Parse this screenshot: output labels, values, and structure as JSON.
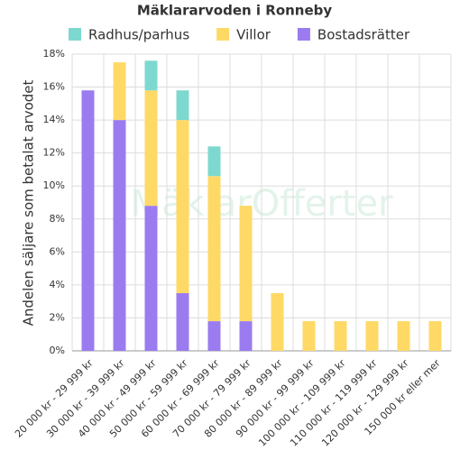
{
  "chart_data": {
    "type": "stacked_bar",
    "title": "Mäklararvoden i Ronneby",
    "watermark": "MäklarOfferter",
    "y_label": "Andelen säljare som betalat arvodet",
    "categories": [
      "20 000 kr - 29 999 kr",
      "30 000 kr - 39 999 kr",
      "40 000 kr - 49 999 kr",
      "50 000 kr - 59 999 kr",
      "60 000 kr - 69 999 kr",
      "70 000 kr - 79 999 kr",
      "80 000 kr - 89 999 kr",
      "90 000 kr - 99 999 kr",
      "100 000 kr - 109 999 kr",
      "110 000 kr - 119 999 kr",
      "120 000 kr - 129 999 kr",
      "150 000 kr eller mer"
    ],
    "series": [
      {
        "name": "Radhus/parhus",
        "color": "#7dd9cf",
        "values": [
          0,
          0,
          1.8,
          1.8,
          1.8,
          0,
          0,
          0,
          0,
          0,
          0,
          0
        ]
      },
      {
        "name": "Villor",
        "color": "#ffd966",
        "values": [
          0,
          3.5,
          7.0,
          10.5,
          8.8,
          7.0,
          3.5,
          1.8,
          1.8,
          1.8,
          1.8,
          1.8
        ]
      },
      {
        "name": "Bostadsrätter",
        "color": "#9b7bf0",
        "values": [
          15.8,
          14.0,
          8.8,
          3.5,
          1.8,
          1.8,
          0,
          0,
          0,
          0,
          0,
          0
        ]
      }
    ],
    "ylim": [
      0,
      18
    ],
    "yticks": [
      {
        "value": 0,
        "label": "0%"
      },
      {
        "value": 2,
        "label": "2%"
      },
      {
        "value": 4,
        "label": "4%"
      },
      {
        "value": 6,
        "label": "6%"
      },
      {
        "value": 8,
        "label": "8%"
      },
      {
        "value": 10,
        "label": "10%"
      },
      {
        "value": 12,
        "label": "12%"
      },
      {
        "value": 14,
        "label": "14%"
      },
      {
        "value": 16,
        "label": "16%"
      },
      {
        "value": 18,
        "label": "18%"
      }
    ],
    "grid": true
  }
}
